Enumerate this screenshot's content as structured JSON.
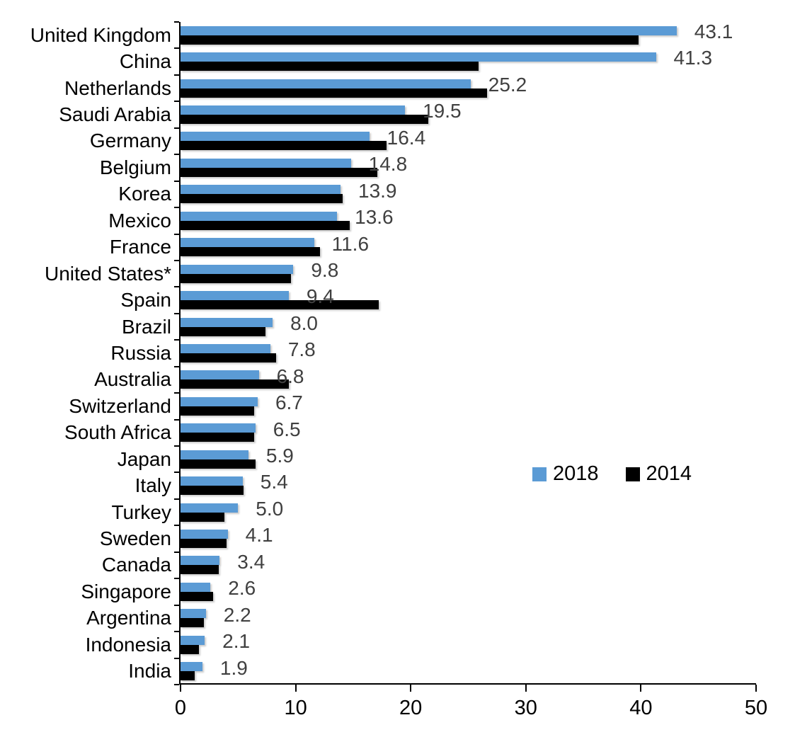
{
  "chart_data": {
    "type": "bar",
    "orientation": "horizontal",
    "title": "",
    "xlabel": "",
    "ylabel": "",
    "xlim": [
      0,
      50
    ],
    "x_ticks": [
      0,
      10,
      20,
      30,
      40,
      50
    ],
    "grid": false,
    "legend_position": "center-right",
    "value_label_color": "#404040",
    "categories": [
      "United Kingdom",
      "China",
      "Netherlands",
      "Saudi Arabia",
      "Germany",
      "Belgium",
      "Korea",
      "Mexico",
      "France",
      "United States*",
      "Spain",
      "Brazil",
      "Russia",
      "Australia",
      "Switzerland",
      "South Africa",
      "Japan",
      "Italy",
      "Turkey",
      "Sweden",
      "Canada",
      "Singapore",
      "Argentina",
      "Indonesia",
      "India"
    ],
    "series": [
      {
        "name": "2018",
        "color": "#5B9BD5",
        "values": [
          43.1,
          41.3,
          25.2,
          19.5,
          16.4,
          14.8,
          13.9,
          13.6,
          11.6,
          9.8,
          9.4,
          8.0,
          7.8,
          6.8,
          6.7,
          6.5,
          5.9,
          5.4,
          5.0,
          4.1,
          3.4,
          2.6,
          2.2,
          2.1,
          1.9
        ],
        "labels": [
          "43.1",
          "41.3",
          "25.2",
          "19.5",
          "16.4",
          "14.8",
          "13.9",
          "13.6",
          "11.6",
          "9.8",
          "9.4",
          "8.0",
          "7.8",
          "6.8",
          "6.7",
          "6.5",
          "5.9",
          "5.4",
          "5.0",
          "4.1",
          "3.4",
          "2.6",
          "2.2",
          "2.1",
          "1.9"
        ]
      },
      {
        "name": "2014",
        "color": "#000000",
        "values": [
          39.8,
          25.9,
          26.6,
          21.5,
          17.9,
          17.1,
          14.1,
          14.7,
          12.1,
          9.6,
          17.2,
          7.4,
          8.3,
          9.4,
          6.4,
          6.4,
          6.5,
          5.5,
          3.8,
          4.0,
          3.3,
          2.8,
          2.0,
          1.6,
          1.2
        ]
      }
    ]
  }
}
